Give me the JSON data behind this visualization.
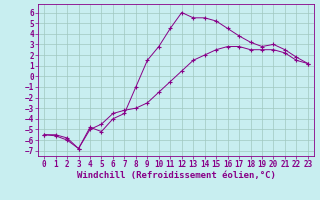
{
  "xlabel": "Windchill (Refroidissement éolien,°C)",
  "xlim": [
    -0.5,
    23.5
  ],
  "ylim": [
    -7.5,
    6.8
  ],
  "xticks": [
    0,
    1,
    2,
    3,
    4,
    5,
    6,
    7,
    8,
    9,
    10,
    11,
    12,
    13,
    14,
    15,
    16,
    17,
    18,
    19,
    20,
    21,
    22,
    23
  ],
  "yticks": [
    6,
    5,
    4,
    3,
    2,
    1,
    0,
    -1,
    -2,
    -3,
    -4,
    -5,
    -6,
    -7
  ],
  "bg_color": "#c8eef0",
  "line_color": "#880088",
  "grid_color": "#a0c8c0",
  "series1_x": [
    0,
    1,
    2,
    3,
    4,
    5,
    6,
    7,
    8,
    9,
    10,
    11,
    12,
    13,
    14,
    15,
    16,
    17,
    18,
    19,
    20,
    21,
    22,
    23
  ],
  "series1_y": [
    -5.5,
    -5.6,
    -6.0,
    -6.8,
    -5.0,
    -4.5,
    -3.5,
    -3.2,
    -3.0,
    -2.5,
    -1.5,
    -0.5,
    0.5,
    1.5,
    2.0,
    2.5,
    2.8,
    2.8,
    2.5,
    2.5,
    2.5,
    2.2,
    1.5,
    1.2
  ],
  "series2_x": [
    0,
    1,
    2,
    3,
    4,
    5,
    6,
    7,
    8,
    9,
    10,
    11,
    12,
    13,
    14,
    15,
    16,
    17,
    18,
    19,
    20,
    21,
    22,
    23
  ],
  "series2_y": [
    -5.5,
    -5.5,
    -5.8,
    -6.8,
    -4.8,
    -5.2,
    -4.0,
    -3.5,
    -1.0,
    1.5,
    2.8,
    4.5,
    6.0,
    5.5,
    5.5,
    5.2,
    4.5,
    3.8,
    3.2,
    2.8,
    3.0,
    2.5,
    1.8,
    1.2
  ],
  "tick_fontsize": 5.5,
  "xlabel_fontsize": 6.5
}
